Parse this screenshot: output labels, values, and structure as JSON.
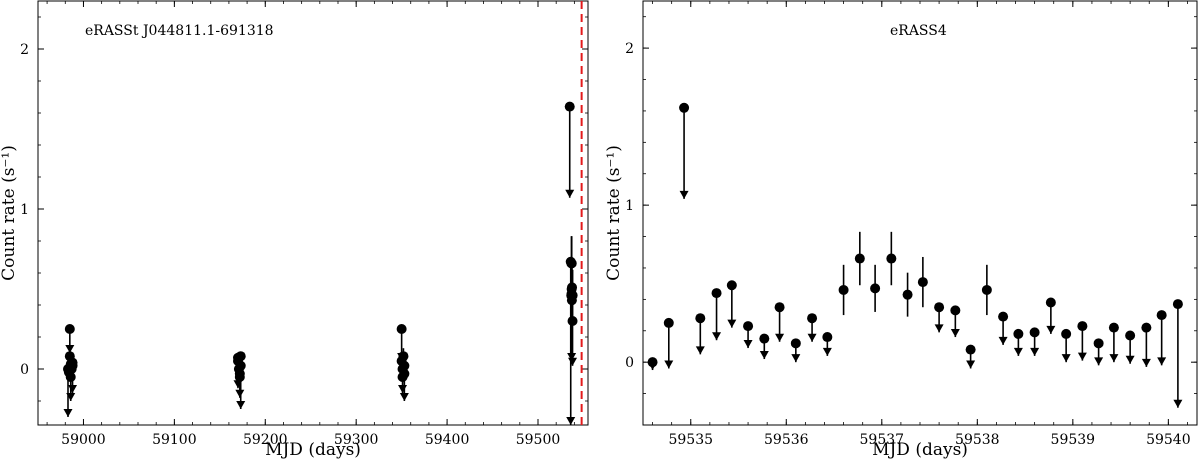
{
  "chart_data": [
    {
      "type": "scatter",
      "annotation": "eRASSt J044811.1-691318",
      "xlabel": "MJD (days)",
      "ylabel": "Count rate (s⁻¹)",
      "xlim": [
        58950,
        59555
      ],
      "ylim": [
        -0.35,
        2.3
      ],
      "xticks": [
        59000,
        59100,
        59200,
        59300,
        59400,
        59500
      ],
      "yticks": [
        0,
        1,
        2
      ],
      "grid": false,
      "vline": {
        "x": 59548,
        "color": "#e31a1c",
        "style": "dashed"
      },
      "detections": [
        {
          "x": 58985,
          "y": 0.08,
          "err": 0.04
        },
        {
          "x": 58986,
          "y": 0.03,
          "err": 0.04
        },
        {
          "x": 58984,
          "y": -0.02,
          "err": 0.04
        },
        {
          "x": 58987,
          "y": 0.0,
          "err": 0.04
        },
        {
          "x": 58988,
          "y": 0.04,
          "err": 0.04
        },
        {
          "x": 59170,
          "y": 0.05,
          "err": 0.04
        },
        {
          "x": 59171,
          "y": 0.0,
          "err": 0.04
        },
        {
          "x": 59172,
          "y": -0.03,
          "err": 0.04
        },
        {
          "x": 59173,
          "y": 0.02,
          "err": 0.04
        },
        {
          "x": 59350,
          "y": 0.05,
          "err": 0.05
        },
        {
          "x": 59351,
          "y": 0.0,
          "err": 0.04
        },
        {
          "x": 59352,
          "y": 0.08,
          "err": 0.05
        },
        {
          "x": 59353,
          "y": -0.03,
          "err": 0.04
        },
        {
          "x": 59536.6,
          "y": 0.46,
          "err": 0.16
        },
        {
          "x": 59536.77,
          "y": 0.66,
          "err": 0.17
        },
        {
          "x": 59536.93,
          "y": 0.47,
          "err": 0.15
        },
        {
          "x": 59537.1,
          "y": 0.66,
          "err": 0.17
        },
        {
          "x": 59537.27,
          "y": 0.43,
          "err": 0.14
        },
        {
          "x": 59537.43,
          "y": 0.51,
          "err": 0.16
        },
        {
          "x": 59538.1,
          "y": 0.46,
          "err": 0.16
        }
      ],
      "upper_limits": [
        {
          "x": 58985,
          "y": 0.25,
          "low": 0.1
        },
        {
          "x": 58983,
          "y": 0.0,
          "low": -0.3
        },
        {
          "x": 58986,
          "y": -0.05,
          "low": -0.2
        },
        {
          "x": 58988,
          "y": 0.02,
          "low": -0.15
        },
        {
          "x": 59170,
          "y": 0.07,
          "low": -0.12
        },
        {
          "x": 59173,
          "y": 0.08,
          "low": -0.25
        },
        {
          "x": 59172,
          "y": -0.05,
          "low": -0.18
        },
        {
          "x": 59350,
          "y": 0.25,
          "low": 0.05
        },
        {
          "x": 59353,
          "y": 0.02,
          "low": -0.2
        },
        {
          "x": 59351,
          "y": -0.05,
          "low": -0.15
        },
        {
          "x": 59534.9,
          "y": 1.64,
          "low": 1.07
        },
        {
          "x": 59536,
          "y": 0.67,
          "low": -0.35
        },
        {
          "x": 59537,
          "y": 0.5,
          "low": 0.05
        },
        {
          "x": 59538,
          "y": 0.3,
          "low": 0.02
        }
      ]
    },
    {
      "type": "scatter",
      "annotation": "eRASS4",
      "xlabel": "MJD (days)",
      "ylabel": "Count rate (s⁻¹)",
      "xlim": [
        59534.5,
        59540.3
      ],
      "ylim": [
        -0.4,
        2.3
      ],
      "xticks": [
        59535,
        59536,
        59537,
        59538,
        59539,
        59540
      ],
      "yticks": [
        0,
        1,
        2
      ],
      "grid": false,
      "detections": [
        {
          "x": 59536.6,
          "y": 0.46,
          "err": 0.16
        },
        {
          "x": 59536.77,
          "y": 0.66,
          "err": 0.17
        },
        {
          "x": 59536.93,
          "y": 0.47,
          "err": 0.15
        },
        {
          "x": 59537.1,
          "y": 0.66,
          "err": 0.17
        },
        {
          "x": 59537.27,
          "y": 0.43,
          "err": 0.14
        },
        {
          "x": 59537.43,
          "y": 0.51,
          "err": 0.16
        },
        {
          "x": 59538.1,
          "y": 0.46,
          "err": 0.16
        }
      ],
      "upper_limits": [
        {
          "x": 59534.6,
          "y": 0.0,
          "low": -0.05
        },
        {
          "x": 59534.77,
          "y": 0.25,
          "low": -0.04
        },
        {
          "x": 59534.93,
          "y": 1.62,
          "low": 1.04
        },
        {
          "x": 59535.1,
          "y": 0.28,
          "low": 0.05
        },
        {
          "x": 59535.27,
          "y": 0.44,
          "low": 0.14
        },
        {
          "x": 59535.43,
          "y": 0.49,
          "low": 0.22
        },
        {
          "x": 59535.6,
          "y": 0.23,
          "low": 0.09
        },
        {
          "x": 59535.77,
          "y": 0.15,
          "low": 0.02
        },
        {
          "x": 59535.93,
          "y": 0.35,
          "low": 0.13
        },
        {
          "x": 59536.1,
          "y": 0.12,
          "low": 0.0
        },
        {
          "x": 59536.27,
          "y": 0.28,
          "low": 0.13
        },
        {
          "x": 59536.43,
          "y": 0.16,
          "low": 0.04
        },
        {
          "x": 59537.6,
          "y": 0.35,
          "low": 0.19
        },
        {
          "x": 59537.77,
          "y": 0.33,
          "low": 0.16
        },
        {
          "x": 59537.93,
          "y": 0.08,
          "low": -0.04
        },
        {
          "x": 59538.27,
          "y": 0.29,
          "low": 0.11
        },
        {
          "x": 59538.43,
          "y": 0.18,
          "low": 0.04
        },
        {
          "x": 59538.6,
          "y": 0.19,
          "low": 0.04
        },
        {
          "x": 59538.77,
          "y": 0.38,
          "low": 0.18
        },
        {
          "x": 59538.93,
          "y": 0.18,
          "low": 0.0
        },
        {
          "x": 59539.1,
          "y": 0.23,
          "low": 0.01
        },
        {
          "x": 59539.27,
          "y": 0.12,
          "low": -0.02
        },
        {
          "x": 59539.43,
          "y": 0.22,
          "low": 0.0
        },
        {
          "x": 59539.6,
          "y": 0.17,
          "low": -0.01
        },
        {
          "x": 59539.77,
          "y": 0.22,
          "low": -0.03
        },
        {
          "x": 59539.93,
          "y": 0.3,
          "low": -0.02
        },
        {
          "x": 59540.1,
          "y": 0.37,
          "low": -0.29
        }
      ]
    }
  ]
}
